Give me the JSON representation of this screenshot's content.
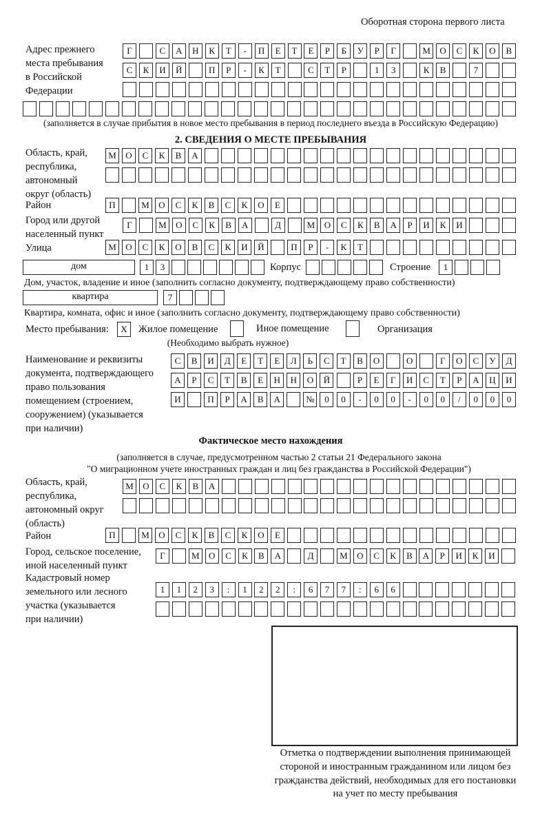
{
  "page_header": "Оборотная сторона первого листа",
  "previous_address": {
    "label": [
      "Адрес прежнего",
      "места пребывания",
      "в Российской",
      "Федерации"
    ],
    "rows": [
      "Г САНКТ-ПЕТЕРБУРГ МОСКОВ",
      "СКИЙ ПР-КТ СТР 13 КВ 7",
      "",
      ""
    ],
    "note": "(заполняется в случае прибытия в новое место пребывания в период последнего въезда в Российскую Федерацию)"
  },
  "section2": {
    "title": "2. СВЕДЕНИЯ О МЕСТЕ ПРЕБЫВАНИЯ",
    "region": {
      "label": [
        "Область, край,",
        "республика,",
        "автономный",
        "округ (область)"
      ],
      "rows": [
        "МОСКВА",
        ""
      ]
    },
    "district": {
      "label": "Район",
      "value": "П МОСКВСКОЕ"
    },
    "city": {
      "label": [
        "Город или другой",
        "населенный пункт"
      ],
      "value": "Г МОСКВА Д МОСКВАРИКИ"
    },
    "street": {
      "label": "Улица",
      "value": "МОСКОВСКИЙ ПР-КТ"
    },
    "house": {
      "type": "дом",
      "number": "13",
      "korpus_label": "Корпус",
      "korpus": "",
      "building_label": "Строение",
      "building": "1",
      "note": "Дом, участок, владение и иное (заполнить согласно документу, подтверждающему право собственности)"
    },
    "apartment": {
      "type": "квартира",
      "number": "7",
      "note": "Квартира, комната, офис и иное (заполнить согласно документу, подтверждающему право собственности)"
    },
    "place_of_stay": {
      "label": "Место пребывания:",
      "options": [
        {
          "label": "Жилое помещение",
          "mark": "X",
          "checked": true
        },
        {
          "label": "Иное помещение",
          "mark": "",
          "checked": false
        },
        {
          "label": "Организация",
          "mark": "",
          "checked": false
        }
      ],
      "note": "(Необходимо выбрать нужное)"
    },
    "document": {
      "label": [
        "Наименование и реквизиты",
        "документа, подтверждающего",
        "право пользования",
        "помещением (строением,",
        "сооружением) (указывается",
        "при наличии)"
      ],
      "rows": [
        "СВИДЕТЕЛЬСТВО О ГОСУД",
        "АРСТВЕННОЙ РЕГИСТРАЦИ",
        "И ПРАВА №00-00-00/000"
      ]
    }
  },
  "actual_location": {
    "title": "Фактическое место нахождения",
    "note": [
      "(заполняется в случае, предусмотренном частью 2 статьи 21 Федерального закона",
      "\"О миграционном учете иностранных граждан и лиц без гражданства в Российской Федерации\")"
    ],
    "region": {
      "label": [
        "Область, край,",
        "республика,",
        "автономный округ",
        "(область)"
      ],
      "rows": [
        "МОСКВА",
        ""
      ]
    },
    "district": {
      "label": "Район",
      "value": "П МОСКВСКОЕ"
    },
    "city": {
      "label": [
        "Город, сельское поселение,",
        "иной населенный пункт"
      ],
      "value": "Г МОСКВА Д МОСКВАРИКИ"
    },
    "cadastral": {
      "label": [
        "Кадастровый номер",
        "земельного или лесного",
        "участка (указывается",
        "при наличии)"
      ],
      "rows": [
        "1123:122:677:66",
        ""
      ]
    }
  },
  "confirmation": {
    "caption": [
      "Отметка о подтверждении выполнения принимающей",
      "стороной и иностранным гражданином или лицом без",
      "гражданства действий, необходимых для его постановки",
      "на учет по месту пребывания"
    ]
  }
}
